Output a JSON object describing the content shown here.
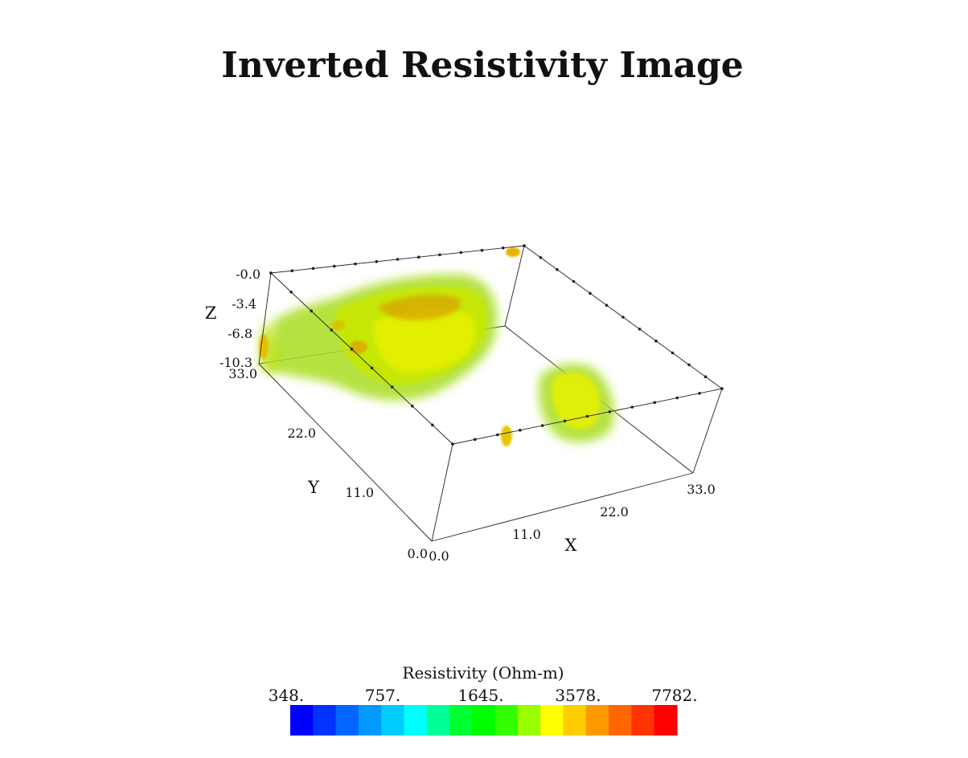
{
  "chart_data": {
    "type": "volume-3d",
    "title": "Inverted Resistivity Image",
    "axes": {
      "x": {
        "label": "X",
        "ticks": [
          "0.0",
          "11.0",
          "22.0",
          "33.0"
        ],
        "range": [
          0,
          33
        ]
      },
      "y": {
        "label": "Y",
        "ticks": [
          "0.0",
          "11.0",
          "22.0",
          "33.0"
        ],
        "range": [
          0,
          33
        ]
      },
      "z": {
        "label": "Z",
        "ticks": [
          "-0.0",
          "-3.4",
          "-6.8",
          "-10.3"
        ],
        "range": [
          -10.3,
          0
        ]
      }
    },
    "colorbar": {
      "title": "Resistivity (Ohm-m)",
      "tick_labels": [
        "348.",
        "757.",
        "1645.",
        "3578.",
        "7782."
      ],
      "tick_values": [
        348,
        757,
        1645,
        3578,
        7782
      ],
      "scale": "log",
      "colors": [
        "#0000ff",
        "#0033ff",
        "#0066ff",
        "#0099ff",
        "#00ccff",
        "#00ffff",
        "#00ff99",
        "#00ff33",
        "#00ff00",
        "#33ff00",
        "#99ff00",
        "#ffff00",
        "#ffcc00",
        "#ff9900",
        "#ff6600",
        "#ff3300",
        "#ff0000"
      ]
    },
    "bodies": [
      {
        "name": "large-anomaly",
        "color": "#b8e000",
        "core_color": "#e0a800"
      },
      {
        "name": "small-anomaly",
        "color": "#b8e000",
        "core_color": "#f2ec00"
      }
    ]
  }
}
